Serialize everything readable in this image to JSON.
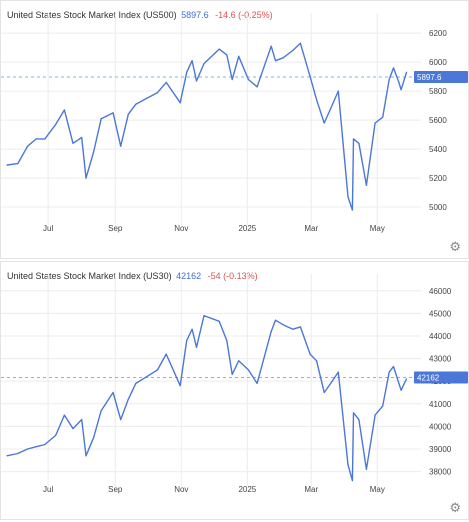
{
  "charts": [
    {
      "title": "United States Stock Market Index (US500)",
      "price": "5897.6",
      "change": "-14.6 (-0.25%)",
      "current_label": "5897.6"
    },
    {
      "title": "United States Stock Market Index (US30)",
      "price": "42162",
      "change": "-54 (-0.13%)",
      "current_label": "42162"
    }
  ],
  "settings_icon": "gear-icon",
  "colors": {
    "line": "#4a77d8",
    "price": "#3b6fd4",
    "change": "#e05252",
    "grid": "#ececec"
  },
  "chart_data": [
    {
      "type": "line",
      "title": "United States Stock Market Index (US500)",
      "x_tick_labels": [
        "Jul",
        "Sep",
        "Nov",
        "2025",
        "Mar",
        "May"
      ],
      "y_ticks": [
        5000,
        5200,
        5400,
        5600,
        5800,
        6000,
        6200
      ],
      "ylim": [
        4890,
        6270
      ],
      "current_value": 5897.6,
      "grid": true,
      "series": [
        {
          "x": [
            "2024-05-24",
            "2024-06-03",
            "2024-06-12",
            "2024-06-20",
            "2024-06-28",
            "2024-07-08",
            "2024-07-16",
            "2024-07-24",
            "2024-08-01",
            "2024-08-05",
            "2024-08-12",
            "2024-08-19",
            "2024-08-30",
            "2024-09-06",
            "2024-09-13",
            "2024-09-20",
            "2024-09-30",
            "2024-10-10",
            "2024-10-18",
            "2024-10-31",
            "2024-11-06",
            "2024-11-11",
            "2024-11-15",
            "2024-11-22",
            "2024-12-06",
            "2024-12-13",
            "2024-12-18",
            "2024-12-24",
            "2025-01-02",
            "2025-01-10",
            "2025-01-23",
            "2025-01-27",
            "2025-02-03",
            "2025-02-12",
            "2025-02-19",
            "2025-02-28",
            "2025-03-06",
            "2025-03-13",
            "2025-03-19",
            "2025-03-26",
            "2025-04-04",
            "2025-04-08",
            "2025-04-09",
            "2025-04-14",
            "2025-04-21",
            "2025-04-29",
            "2025-05-06",
            "2025-05-12",
            "2025-05-16",
            "2025-05-21",
            "2025-05-23",
            "2025-05-28"
          ],
          "values": [
            5290,
            5300,
            5420,
            5470,
            5470,
            5570,
            5670,
            5440,
            5480,
            5200,
            5380,
            5610,
            5650,
            5420,
            5640,
            5710,
            5750,
            5790,
            5860,
            5720,
            5930,
            6010,
            5870,
            5990,
            6090,
            6050,
            5880,
            6040,
            5880,
            5830,
            6110,
            6010,
            6030,
            6080,
            6130,
            5900,
            5740,
            5580,
            5680,
            5800,
            5070,
            4980,
            5470,
            5440,
            5150,
            5580,
            5620,
            5880,
            5960,
            5860,
            5810,
            5930
          ]
        }
      ]
    },
    {
      "type": "line",
      "title": "United States Stock Market Index (US30)",
      "x_tick_labels": [
        "Jul",
        "Sep",
        "Nov",
        "2025",
        "Mar",
        "May"
      ],
      "y_ticks": [
        38000,
        39000,
        40000,
        41000,
        42000,
        43000,
        44000,
        45000,
        46000
      ],
      "ylim": [
        37450,
        46300
      ],
      "current_value": 42162,
      "grid": true,
      "series": [
        {
          "x": [
            "2024-05-24",
            "2024-06-03",
            "2024-06-12",
            "2024-06-20",
            "2024-06-28",
            "2024-07-08",
            "2024-07-16",
            "2024-07-24",
            "2024-08-01",
            "2024-08-05",
            "2024-08-12",
            "2024-08-19",
            "2024-08-30",
            "2024-09-06",
            "2024-09-13",
            "2024-09-20",
            "2024-09-30",
            "2024-10-10",
            "2024-10-18",
            "2024-10-31",
            "2024-11-06",
            "2024-11-11",
            "2024-11-15",
            "2024-11-22",
            "2024-12-06",
            "2024-12-13",
            "2024-12-18",
            "2024-12-24",
            "2025-01-02",
            "2025-01-10",
            "2025-01-23",
            "2025-01-27",
            "2025-02-03",
            "2025-02-12",
            "2025-02-19",
            "2025-02-28",
            "2025-03-06",
            "2025-03-13",
            "2025-03-19",
            "2025-03-26",
            "2025-04-04",
            "2025-04-08",
            "2025-04-09",
            "2025-04-14",
            "2025-04-21",
            "2025-04-29",
            "2025-05-06",
            "2025-05-12",
            "2025-05-16",
            "2025-05-21",
            "2025-05-23",
            "2025-05-28"
          ],
          "values": [
            38700,
            38800,
            39000,
            39100,
            39200,
            39600,
            40500,
            39900,
            40300,
            38700,
            39500,
            40700,
            41500,
            40300,
            41200,
            41900,
            42200,
            42500,
            43200,
            41800,
            43800,
            44300,
            43500,
            44900,
            44650,
            43800,
            42300,
            42900,
            42500,
            41900,
            44200,
            44700,
            44500,
            44300,
            44400,
            43200,
            42900,
            41500,
            41900,
            42400,
            38300,
            37600,
            40600,
            40300,
            38100,
            40500,
            40900,
            42400,
            42650,
            41900,
            41600,
            42100
          ]
        }
      ]
    }
  ]
}
